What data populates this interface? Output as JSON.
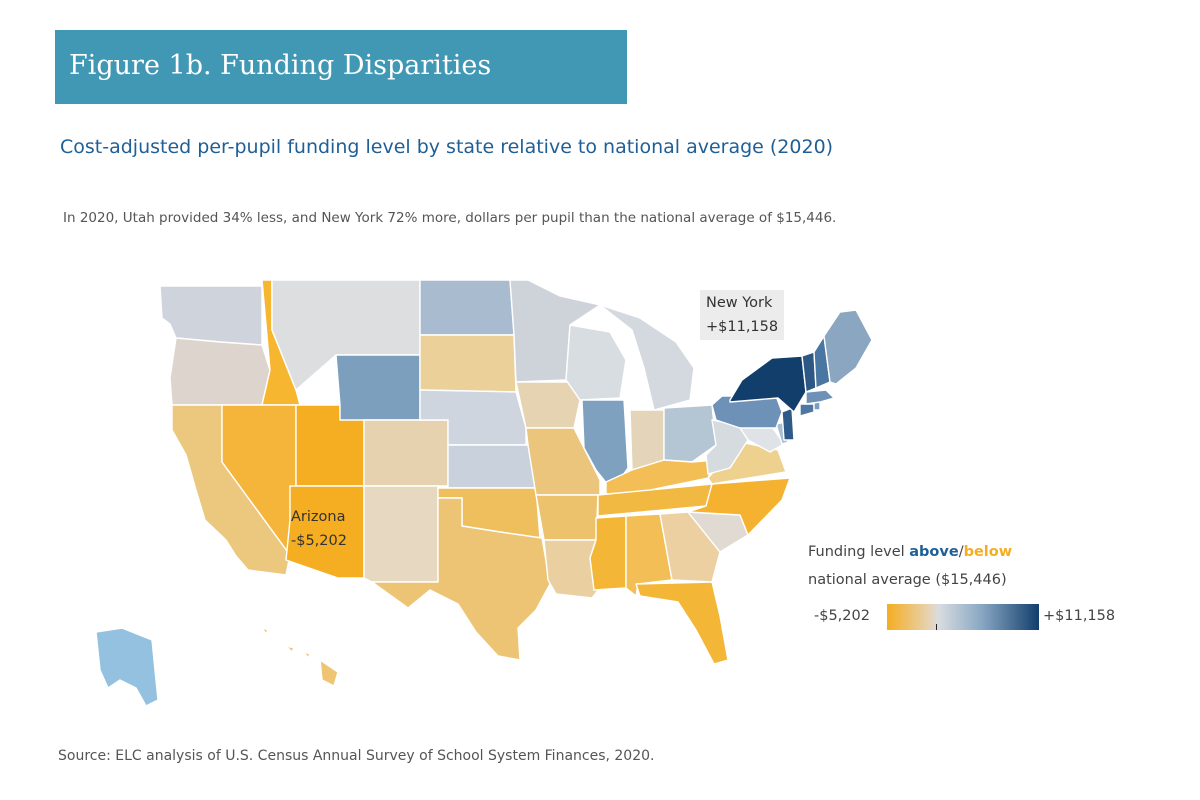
{
  "header": {
    "figure_title": "Figure 1b. Funding Disparities",
    "subtitle": "Cost-adjusted per-pupil funding level by state relative to national average (2020)",
    "description": "In 2020, Utah provided 34% less, and New York 72% more, dollars per pupil than the national average of $15,446."
  },
  "callouts": {
    "new_york": {
      "name": "New York",
      "value": "+$11,158"
    },
    "arizona": {
      "name": "Arizona",
      "value": "-$5,202"
    }
  },
  "legend": {
    "prefix": "Funding level ",
    "above": "above",
    "slash": "/",
    "below": "below",
    "line2": "national average ($15,446)",
    "min_label": "-$5,202",
    "max_label": "+$11,158"
  },
  "source": "Source: ELC analysis of U.S. Census Annual Survey of School System Finances, 2020.",
  "colors": {
    "banner": "#4198b5",
    "subtitle": "#1f5f96",
    "below_max": "#f5ad21",
    "neutral": "#d8dce0",
    "above_max": "#123e6c"
  },
  "map_data": {
    "national_average": 15446,
    "min": -5202,
    "max": 11158,
    "highlighted": [
      "NY",
      "AZ"
    ]
  }
}
